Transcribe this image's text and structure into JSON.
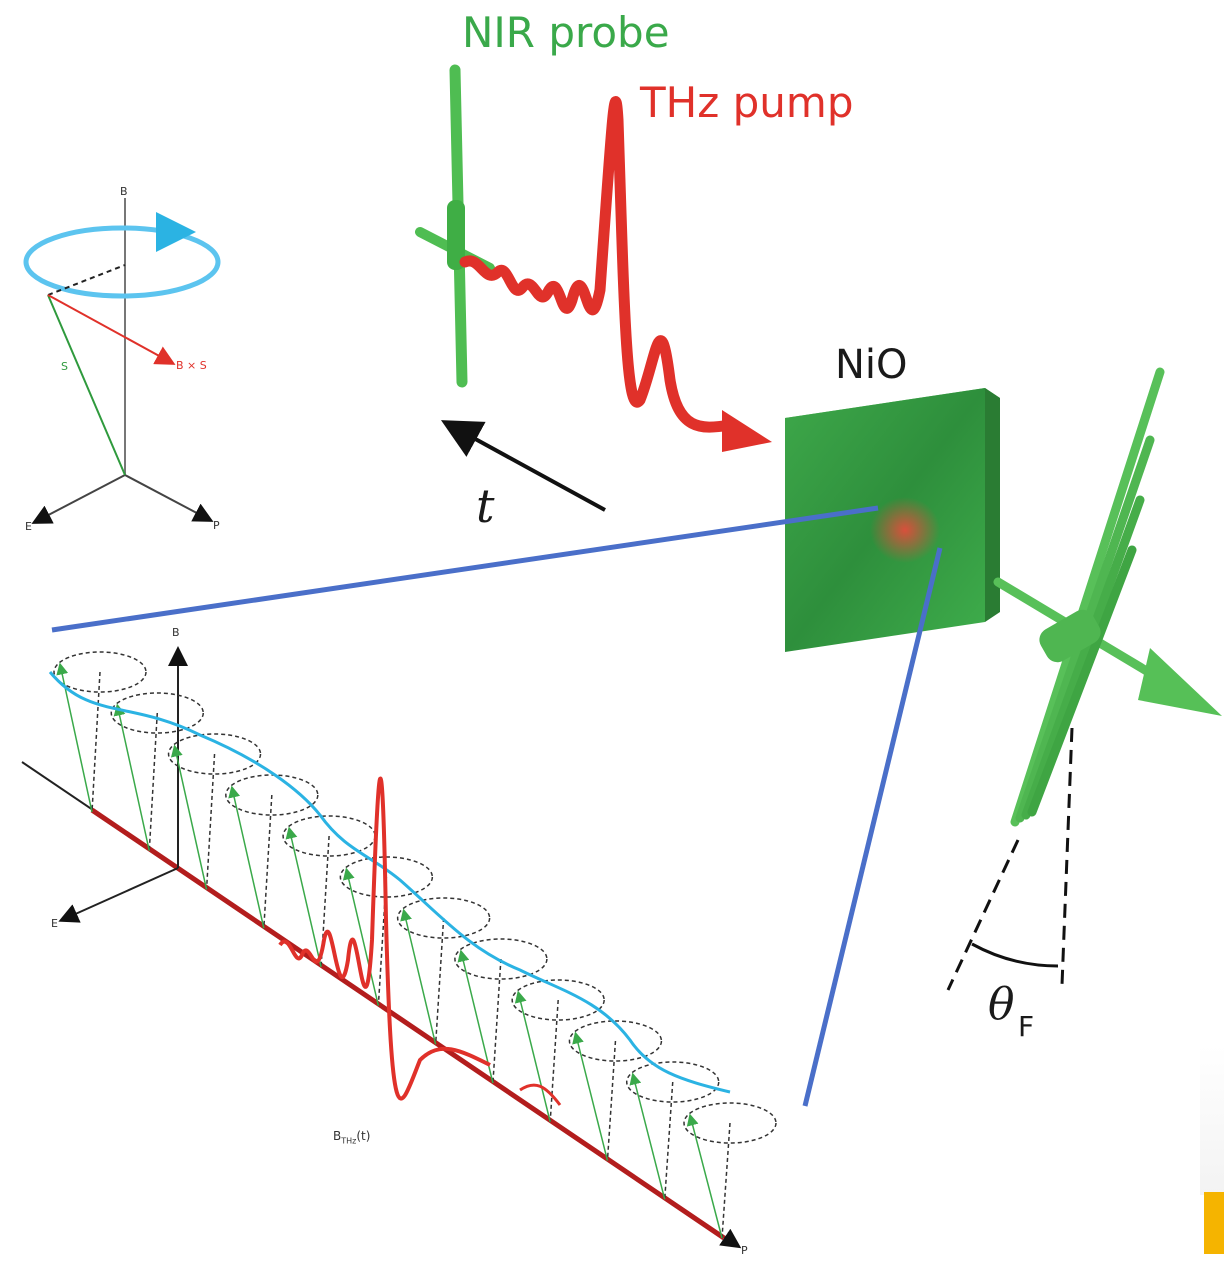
{
  "labels": {
    "nir_probe": "NIR probe",
    "thz_pump": "THz pump",
    "nio": "NiO",
    "time": "t",
    "theta": "θ",
    "theta_sub": "F"
  },
  "precession_diagram": {
    "axis_b": "B",
    "axis_e": "E",
    "axis_p": "P",
    "spin": "S",
    "torque": "B × S"
  },
  "trajectory_diagram": {
    "axis_b": "B",
    "axis_e": "E",
    "axis_p": "P",
    "field_label": "B",
    "field_sub": "THz",
    "field_arg": "(t)"
  },
  "colors": {
    "probe_green": "#3aa94a",
    "pump_red": "#e0312a",
    "trajectory_cyan": "#2bb3e3",
    "zoom_blue": "#4a6fc9",
    "accent": "#f5b400"
  }
}
